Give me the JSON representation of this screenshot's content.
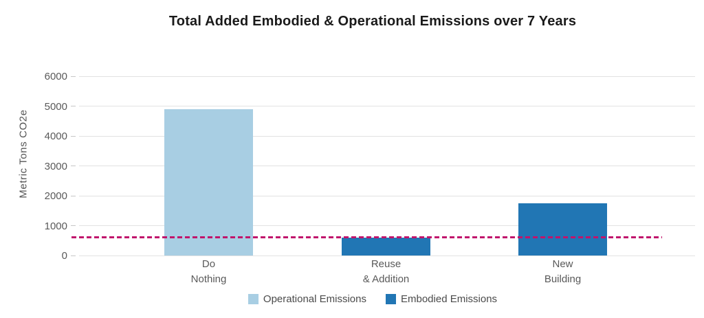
{
  "chart_data": {
    "type": "bar",
    "title": "Total Added Embodied & Operational Emissions over 7 Years",
    "xlabel": "",
    "ylabel": "Metric Tons CO2e",
    "ylim": [
      0,
      6000
    ],
    "yticks": [
      0,
      1000,
      2000,
      3000,
      4000,
      5000,
      6000
    ],
    "grid": "horizontal",
    "legend_position": "bottom",
    "categories": [
      "Do Nothing",
      "Reuse & Addition",
      "New Building"
    ],
    "bars": [
      {
        "label_lines": [
          "Do",
          "Nothing"
        ],
        "value": 4900,
        "series": "Operational Emissions"
      },
      {
        "label_lines": [
          "Reuse",
          "& Addition"
        ],
        "value": 600,
        "series": "Embodied Emissions"
      },
      {
        "label_lines": [
          "New",
          "Building"
        ],
        "value": 1750,
        "series": "Embodied Emissions"
      }
    ],
    "series": [
      {
        "name": "Operational Emissions",
        "color": "#a8cee3"
      },
      {
        "name": "Embodied Emissions",
        "color": "#2176b4"
      }
    ],
    "reference_line": {
      "value": 620,
      "color": "#c0146c",
      "style": "dashed"
    }
  },
  "colors": {
    "title_text": "#1a1a1a",
    "axis_text": "#595959",
    "gridline": "#e2e2e2",
    "legend_text": "#4a4a4a"
  }
}
